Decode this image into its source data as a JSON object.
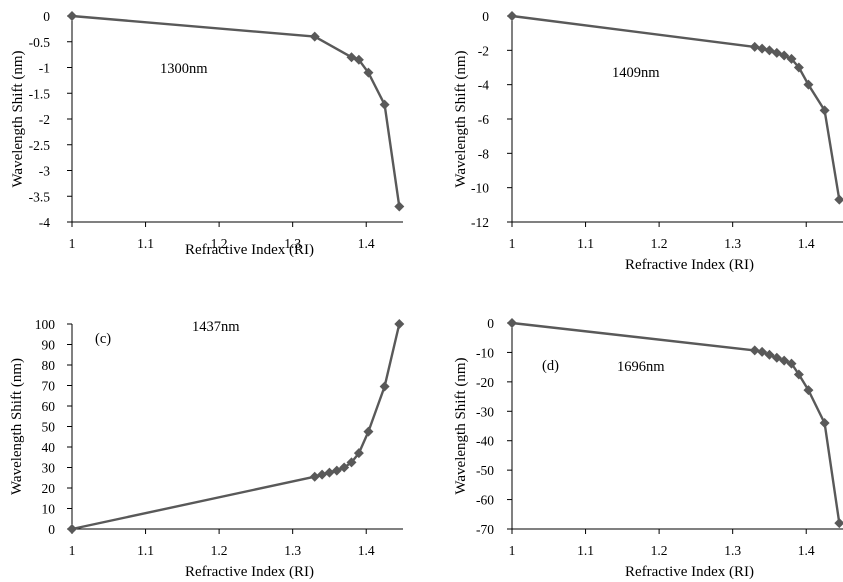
{
  "chart_data": [
    {
      "type": "line",
      "title": "",
      "annotation": "1300nm",
      "panel_label": "",
      "xlabel": "Refractive Index (RI)",
      "ylabel": "Wavelength Shift (nm)",
      "xlim": [
        1,
        1.45
      ],
      "ylim": [
        -4,
        0
      ],
      "xticks": [
        "1",
        "1.1",
        "1.2",
        "1.3",
        "1.4"
      ],
      "yticks": [
        "0",
        "-0.5",
        "-1",
        "-1.5",
        "-2",
        "-2.5",
        "-3",
        "-3.5",
        "-4"
      ],
      "series": [
        {
          "color": "#595959",
          "x": [
            1.0,
            1.33,
            1.38,
            1.39,
            1.403,
            1.425,
            1.445
          ],
          "y": [
            0,
            -0.4,
            -0.8,
            -0.85,
            -1.1,
            -1.72,
            -3.7
          ]
        }
      ]
    },
    {
      "type": "line",
      "title": "",
      "annotation": "1409nm",
      "panel_label": "",
      "xlabel": "Refractive Index (RI)",
      "ylabel": "Wavelength Shift (nm)",
      "xlim": [
        1,
        1.45
      ],
      "ylim": [
        -12,
        0
      ],
      "xticks": [
        "1",
        "1.1",
        "1.2",
        "1.3",
        "1.4"
      ],
      "yticks": [
        "0",
        "-2",
        "-4",
        "-6",
        "-8",
        "-10",
        "-12"
      ],
      "series": [
        {
          "color": "#595959",
          "x": [
            1.0,
            1.33,
            1.34,
            1.35,
            1.36,
            1.37,
            1.38,
            1.39,
            1.403,
            1.425,
            1.445
          ],
          "y": [
            0,
            -1.8,
            -1.9,
            -2.0,
            -2.15,
            -2.3,
            -2.5,
            -3.0,
            -4.0,
            -5.5,
            -10.7
          ]
        }
      ]
    },
    {
      "type": "line",
      "title": "",
      "annotation": "1437nm",
      "panel_label": "(c)",
      "xlabel": "Refractive Index (RI)",
      "ylabel": "Wavelength Shift (nm)",
      "xlim": [
        1,
        1.45
      ],
      "ylim": [
        0,
        100
      ],
      "xticks": [
        "1",
        "1.1",
        "1.2",
        "1.3",
        "1.4"
      ],
      "yticks": [
        "100",
        "90",
        "80",
        "70",
        "60",
        "50",
        "40",
        "30",
        "20",
        "10",
        "0"
      ],
      "series": [
        {
          "color": "#595959",
          "x": [
            1.0,
            1.33,
            1.34,
            1.35,
            1.36,
            1.37,
            1.38,
            1.39,
            1.403,
            1.425,
            1.445
          ],
          "y": [
            0,
            25.5,
            26.5,
            27.5,
            28.5,
            30.0,
            32.5,
            37.0,
            47.5,
            69.5,
            100
          ]
        }
      ]
    },
    {
      "type": "line",
      "title": "",
      "annotation": "1696nm",
      "panel_label": "(d)",
      "xlabel": "Refractive Index (RI)",
      "ylabel": "Wavelength Shift (nm)",
      "xlim": [
        1,
        1.45
      ],
      "ylim": [
        -70,
        0
      ],
      "xticks": [
        "1",
        "1.1",
        "1.2",
        "1.3",
        "1.4"
      ],
      "yticks": [
        "0",
        "-10",
        "-20",
        "-30",
        "-40",
        "-50",
        "-60",
        "-70"
      ],
      "series": [
        {
          "color": "#595959",
          "x": [
            1.0,
            1.33,
            1.34,
            1.35,
            1.36,
            1.37,
            1.38,
            1.39,
            1.403,
            1.425,
            1.445
          ],
          "y": [
            0,
            -9.3,
            -9.8,
            -10.8,
            -11.8,
            -12.8,
            -13.8,
            -17.5,
            -22.8,
            -34.0,
            -68.0
          ]
        }
      ]
    }
  ]
}
